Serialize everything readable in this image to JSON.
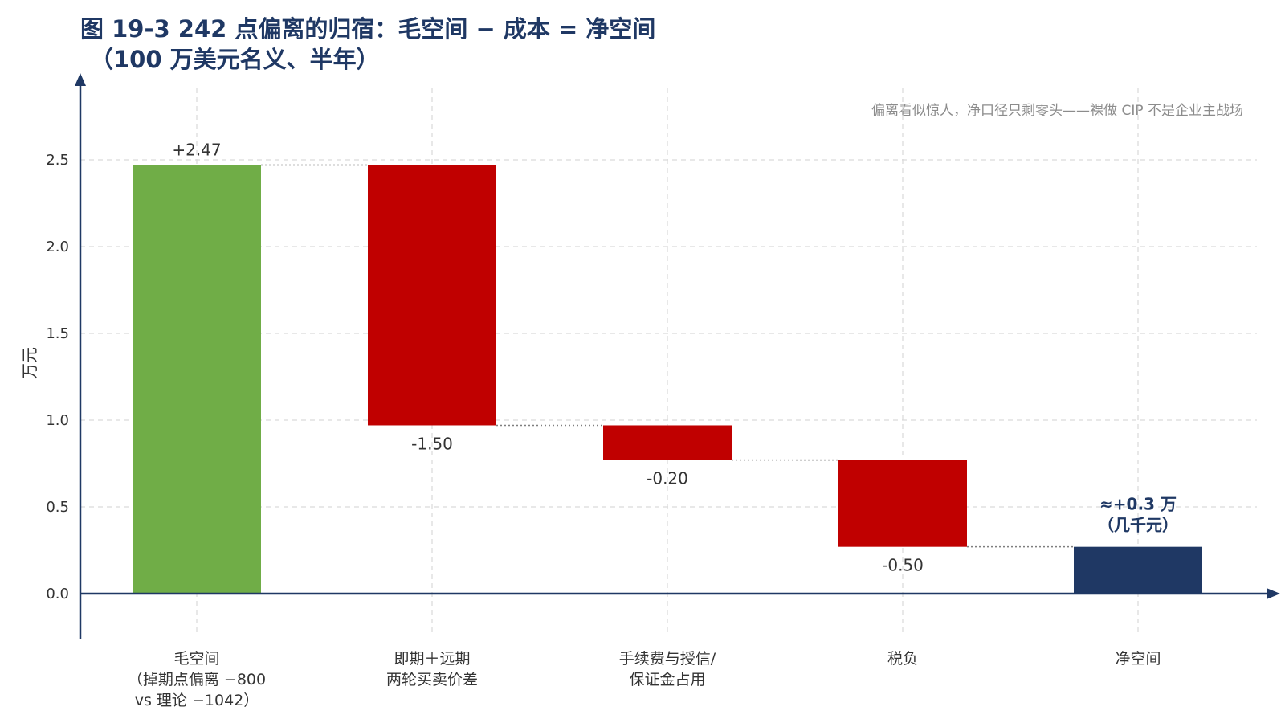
{
  "chart_data": {
    "type": "bar",
    "subtype": "waterfall",
    "title_line1": "图 19-3 242 点偏离的归宿：毛空间 − 成本 = 净空间",
    "title_line2": "（100 万美元名义、半年）",
    "annotation": "偏离看似惊人，净口径只剩零头——裸做 CIP 不是企业主战场",
    "ylabel": "万元",
    "ylim": [
      -0.25,
      2.85
    ],
    "yticks": [
      "0.0",
      "0.5",
      "1.0",
      "1.5",
      "2.0",
      "2.5"
    ],
    "grid": true,
    "categories": [
      [
        "毛空间",
        "（掉期点偏离 −800",
        "vs 理论 −1042）"
      ],
      [
        "即期＋远期",
        "两轮买卖价差"
      ],
      [
        "手续费与授信/",
        "保证金占用"
      ],
      [
        "税负"
      ],
      [
        "净空间"
      ]
    ],
    "bars": [
      {
        "kind": "total",
        "start": 0,
        "end": 2.47,
        "label": "+2.47"
      },
      {
        "kind": "decrease",
        "start": 2.47,
        "end": 0.97,
        "label": "-1.50"
      },
      {
        "kind": "decrease",
        "start": 0.97,
        "end": 0.77,
        "label": "-0.20"
      },
      {
        "kind": "decrease",
        "start": 0.77,
        "end": 0.27,
        "label": "-0.50"
      },
      {
        "kind": "final",
        "start": 0,
        "end": 0.27,
        "label_lines": [
          "≈+0.3 万",
          "（几千元）"
        ]
      }
    ],
    "colors": {
      "total": "#70ad47",
      "decrease": "#c00000",
      "final": "#1f3864",
      "axis": "#1f3864",
      "grid": "#d9d9d9",
      "connector": "#7f7f7f"
    }
  }
}
